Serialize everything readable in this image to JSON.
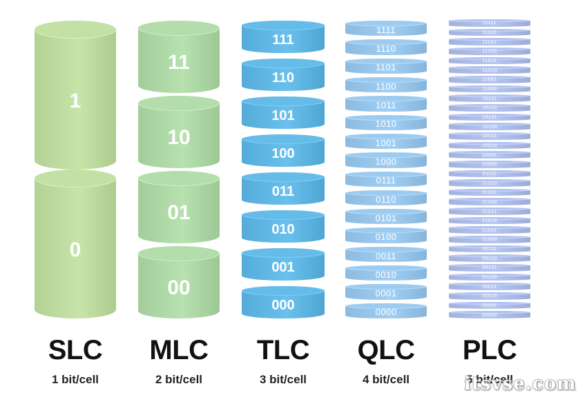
{
  "colors": {
    "slc": "#b9d79a",
    "mlc": "#a9d3a1",
    "tlc": "#5cb2de",
    "qlc": "#93c1e6",
    "plc": "#a8b8e2"
  },
  "columns": [
    {
      "key": "slc",
      "title": "SLC",
      "subtitle": "1 bit/cell",
      "cells": [
        "1",
        "0"
      ]
    },
    {
      "key": "mlc",
      "title": "MLC",
      "subtitle": "2 bit/cell",
      "cells": [
        "11",
        "10",
        "01",
        "00"
      ]
    },
    {
      "key": "tlc",
      "title": "TLC",
      "subtitle": "3 bit/cell",
      "cells": [
        "111",
        "110",
        "101",
        "100",
        "011",
        "010",
        "001",
        "000"
      ]
    },
    {
      "key": "qlc",
      "title": "QLC",
      "subtitle": "4 bit/cell",
      "cells": [
        "1111",
        "1110",
        "1101",
        "1100",
        "1011",
        "1010",
        "1001",
        "1000",
        "0111",
        "0110",
        "0101",
        "0100",
        "0011",
        "0010",
        "0001",
        "0000"
      ]
    },
    {
      "key": "plc",
      "title": "PLC",
      "subtitle": "5 bit/cell",
      "cells": [
        "11111",
        "11110",
        "11101",
        "11100",
        "11011",
        "11010",
        "11001",
        "11000",
        "10111",
        "10110",
        "10101",
        "10100",
        "10011",
        "10010",
        "10001",
        "10000",
        "01111",
        "01110",
        "01101",
        "01100",
        "01011",
        "01010",
        "01001",
        "01000",
        "00111",
        "00110",
        "00101",
        "00100",
        "00011",
        "00010",
        "00001",
        "00000"
      ]
    }
  ],
  "watermark": "itsvse.com"
}
